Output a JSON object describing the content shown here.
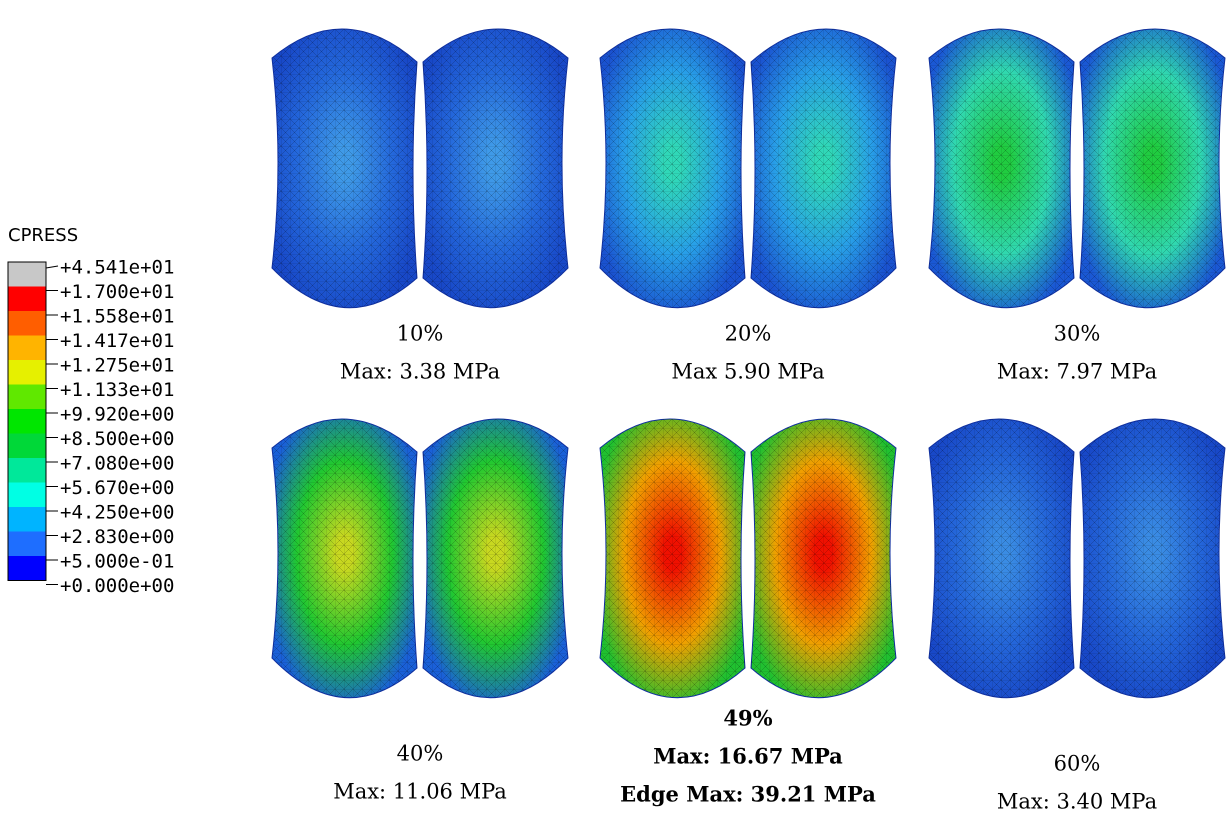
{
  "legend": {
    "title": "CPRESS",
    "labels": [
      "+4.541e+01",
      "+1.700e+01",
      "+1.558e+01",
      "+1.417e+01",
      "+1.275e+01",
      "+1.133e+01",
      "+9.920e+00",
      "+8.500e+00",
      "+7.080e+00",
      "+5.670e+00",
      "+4.250e+00",
      "+2.830e+00",
      "+5.000e-01",
      "+0.000e+00"
    ],
    "colors": [
      "#c8c8c8",
      "#ff0000",
      "#ff5e00",
      "#ffb400",
      "#e6f000",
      "#60e800",
      "#00e600",
      "#00d838",
      "#00e89a",
      "#00ffe4",
      "#00b4ff",
      "#1e6eff",
      "#0000ff"
    ]
  },
  "panels": [
    {
      "lines": [
        "10%",
        "Max: 3.38 MPa"
      ],
      "bold": false,
      "colors": [
        "#3f9ae8",
        "#2468dc",
        "#1848c8"
      ]
    },
    {
      "lines": [
        "20%",
        "Max 5.90 MPa"
      ],
      "bold": false,
      "colors": [
        "#30d8b8",
        "#28a0e8",
        "#1a52d0"
      ]
    },
    {
      "lines": [
        "30%",
        "Max: 7.97 MPa"
      ],
      "bold": false,
      "colors": [
        "#20cc40",
        "#30d8b0",
        "#1a58d4"
      ]
    },
    {
      "lines": [
        "40%",
        "Max: 11.06 MPa"
      ],
      "bold": false,
      "colors": [
        "#c8d820",
        "#20c830",
        "#1a60d8"
      ]
    },
    {
      "lines": [
        "49%",
        "Max: 16.67 MPa",
        "Edge Max: 39.21 MPa"
      ],
      "bold": true,
      "colors": [
        "#f01000",
        "#f0a000",
        "#20c030"
      ]
    },
    {
      "lines": [
        "60%",
        "Max: 3.40 MPa"
      ],
      "bold": false,
      "colors": [
        "#3a8ce4",
        "#2466da",
        "#1848c8"
      ]
    }
  ]
}
